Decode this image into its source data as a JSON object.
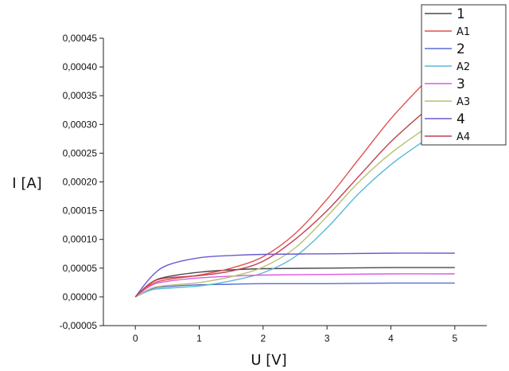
{
  "chart_data": {
    "type": "line",
    "xlabel": "U [V]",
    "ylabel": "I [A]",
    "xlim": [
      -0.5,
      5.5
    ],
    "ylim": [
      -5e-05,
      0.00045
    ],
    "xticks": [
      "0",
      "1",
      "2",
      "3",
      "4",
      "5"
    ],
    "yticks": [
      "-0,00005",
      "0,00000",
      "0,00005",
      "0,00010",
      "0,00015",
      "0,00020",
      "0,00025",
      "0,00030",
      "0,00035",
      "0,00040",
      "0,00045"
    ],
    "ytick_values": [
      -5e-05,
      0,
      5e-05,
      0.0001,
      0.00015,
      0.0002,
      0.00025,
      0.0003,
      0.00035,
      0.0004,
      0.00045
    ],
    "grid": false,
    "legend_position": "top-right",
    "series": [
      {
        "name": "1",
        "color": "#4a4a4a",
        "x": [
          0,
          0.25,
          0.5,
          1,
          1.5,
          2,
          3,
          4,
          5
        ],
        "y": [
          0,
          2.5e-05,
          3.5e-05,
          4.3e-05,
          4.7e-05,
          4.9e-05,
          5e-05,
          5.1e-05,
          5.1e-05
        ]
      },
      {
        "name": "A1",
        "color": "#e05050",
        "x": [
          0,
          0.25,
          0.5,
          1,
          1.5,
          2,
          2.5,
          3,
          3.5,
          4,
          4.5
        ],
        "y": [
          0,
          2.2e-05,
          3e-05,
          3.8e-05,
          5e-05,
          7e-05,
          0.00011,
          0.00017,
          0.00024,
          0.00031,
          0.00037
        ]
      },
      {
        "name": "2",
        "color": "#5a6cd6",
        "x": [
          0,
          0.25,
          0.5,
          1,
          1.5,
          2,
          3,
          4,
          5
        ],
        "y": [
          0,
          1.4e-05,
          1.8e-05,
          2.1e-05,
          2.2e-05,
          2.3e-05,
          2.3e-05,
          2.4e-05,
          2.4e-05
        ]
      },
      {
        "name": "A2",
        "color": "#5bb8d6",
        "x": [
          0,
          0.25,
          0.5,
          1,
          1.5,
          2,
          2.5,
          3,
          3.5,
          4,
          4.5
        ],
        "y": [
          0,
          1.2e-05,
          1.5e-05,
          1.9e-05,
          2.8e-05,
          4.2e-05,
          7e-05,
          0.00012,
          0.00018,
          0.00023,
          0.00027
        ]
      },
      {
        "name": "3",
        "color": "#e058e0",
        "x": [
          0,
          0.25,
          0.5,
          1,
          1.5,
          2,
          3,
          4,
          5
        ],
        "y": [
          0,
          2e-05,
          2.7e-05,
          3.3e-05,
          3.6e-05,
          3.8e-05,
          3.9e-05,
          4e-05,
          4e-05
        ]
      },
      {
        "name": "A3",
        "color": "#b8c070",
        "x": [
          0,
          0.25,
          0.5,
          1,
          1.5,
          2,
          2.5,
          3,
          3.5,
          4,
          4.5
        ],
        "y": [
          0,
          1.5e-05,
          2e-05,
          2.5e-05,
          3.5e-05,
          5.2e-05,
          8.5e-05,
          0.00014,
          0.0002,
          0.00025,
          0.00029
        ]
      },
      {
        "name": "4",
        "color": "#6a5ad0",
        "x": [
          0,
          0.25,
          0.5,
          1,
          1.5,
          2,
          3,
          4,
          5
        ],
        "y": [
          0,
          3.5e-05,
          5.5e-05,
          6.8e-05,
          7.2e-05,
          7.4e-05,
          7.5e-05,
          7.6e-05,
          7.6e-05
        ]
      },
      {
        "name": "A4",
        "color": "#c04050",
        "x": [
          0,
          0.25,
          0.5,
          1,
          1.5,
          2,
          2.5,
          3,
          3.5,
          4,
          4.5
        ],
        "y": [
          0,
          2.5e-05,
          3.3e-05,
          3.7e-05,
          4.5e-05,
          6.2e-05,
          0.0001,
          0.00015,
          0.00021,
          0.00027,
          0.00032
        ]
      }
    ]
  }
}
